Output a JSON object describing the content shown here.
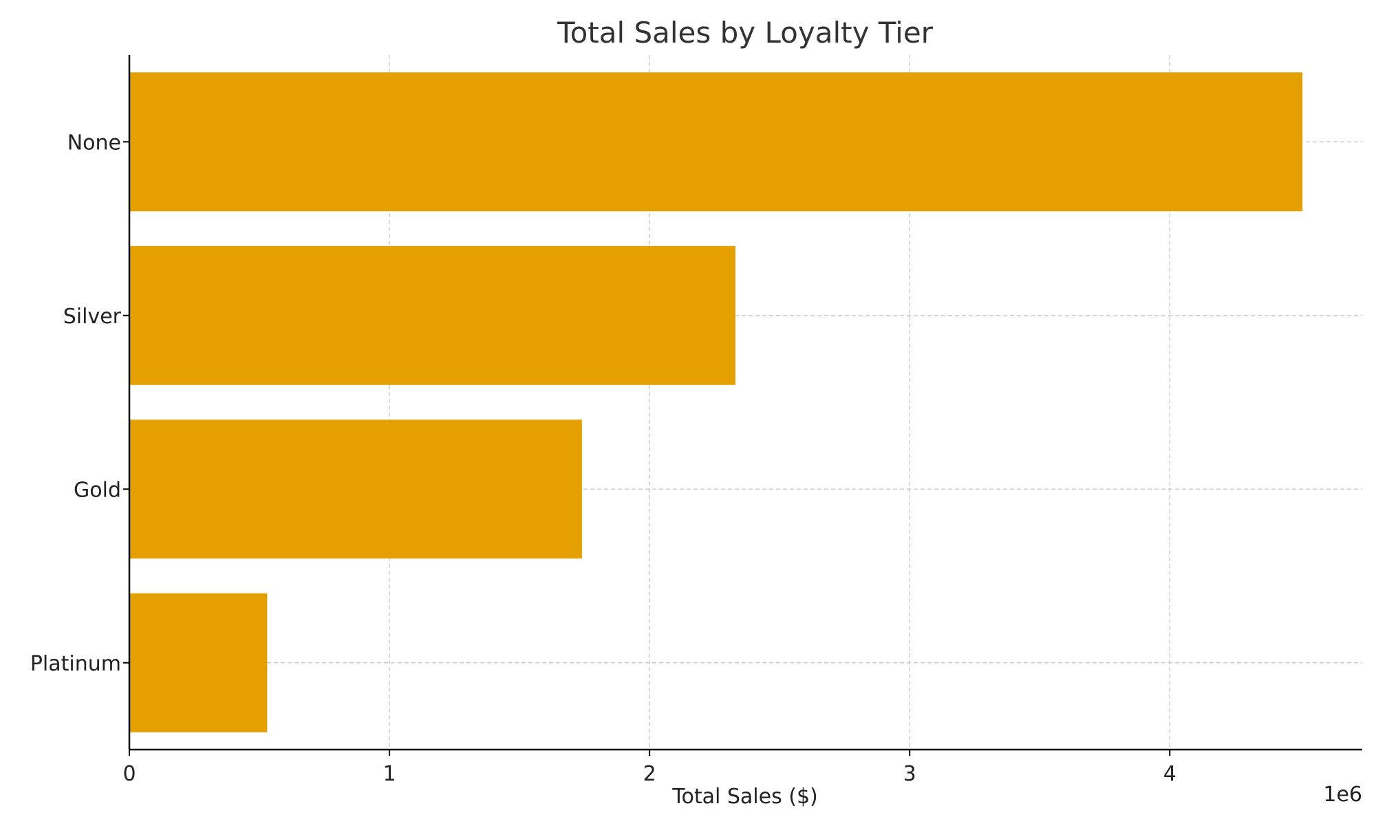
{
  "chart_data": {
    "type": "bar",
    "orientation": "horizontal",
    "title": "Total Sales by Loyalty Tier",
    "xlabel": "Total Sales ($)",
    "ylabel": "",
    "x_offset_label": "1e6",
    "x_ticks": [
      "0",
      "1",
      "2",
      "3",
      "4"
    ],
    "x_tick_values": [
      0,
      1000000,
      2000000,
      3000000,
      4000000
    ],
    "xlim": [
      0,
      4740000
    ],
    "categories": [
      "None",
      "Silver",
      "Gold",
      "Platinum"
    ],
    "values": [
      4510000,
      2330000,
      1740000,
      530000
    ],
    "grid": true,
    "bar_color": "#E3A000",
    "grid_color": "#CCCCCC",
    "axis_color": "#000000"
  }
}
